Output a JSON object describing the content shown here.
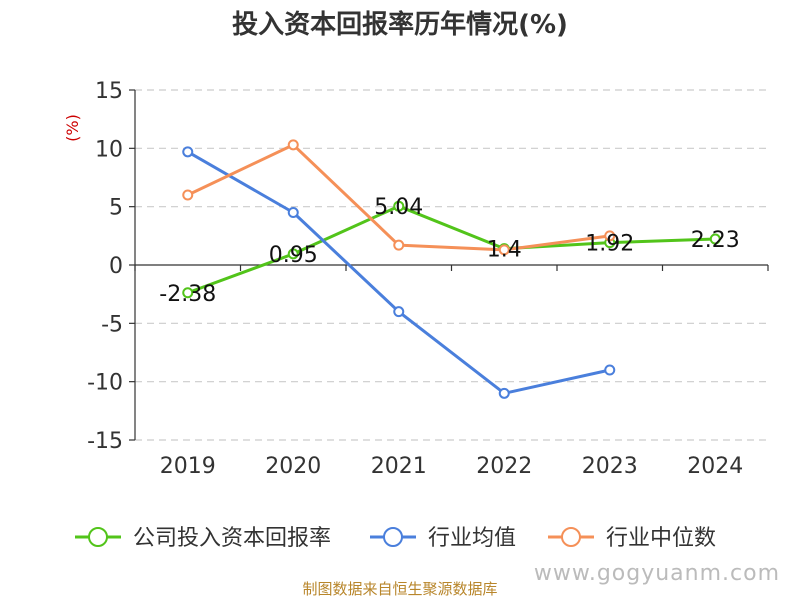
{
  "chart_data": {
    "type": "line",
    "title": "投入资本回报率历年情况(%)",
    "ylabel": "(%)",
    "categories": [
      "2019",
      "2020",
      "2021",
      "2022",
      "2023",
      "2024"
    ],
    "ylim": [
      -15,
      15
    ],
    "yticks": [
      15,
      10,
      5,
      0,
      -5,
      -10,
      -15
    ],
    "grid": true,
    "legend_position": "bottom",
    "series": [
      {
        "name": "公司投入资本回报率",
        "color": "#52c41a",
        "values": [
          -2.38,
          0.95,
          5.04,
          1.4,
          1.92,
          2.23
        ],
        "labels": [
          "-2.38",
          "0.95",
          "5.04",
          "1.4",
          "1.92",
          "2.23"
        ]
      },
      {
        "name": "行业均值",
        "color": "#4a7fdc",
        "values": [
          9.7,
          4.5,
          -4.0,
          -11.0,
          -9.0,
          null
        ]
      },
      {
        "name": "行业中位数",
        "color": "#f59058",
        "values": [
          6.0,
          10.3,
          1.7,
          1.3,
          2.5,
          null
        ]
      }
    ]
  },
  "source": "制图数据来自恒生聚源数据库",
  "watermark": "www.gogyuanm.com"
}
